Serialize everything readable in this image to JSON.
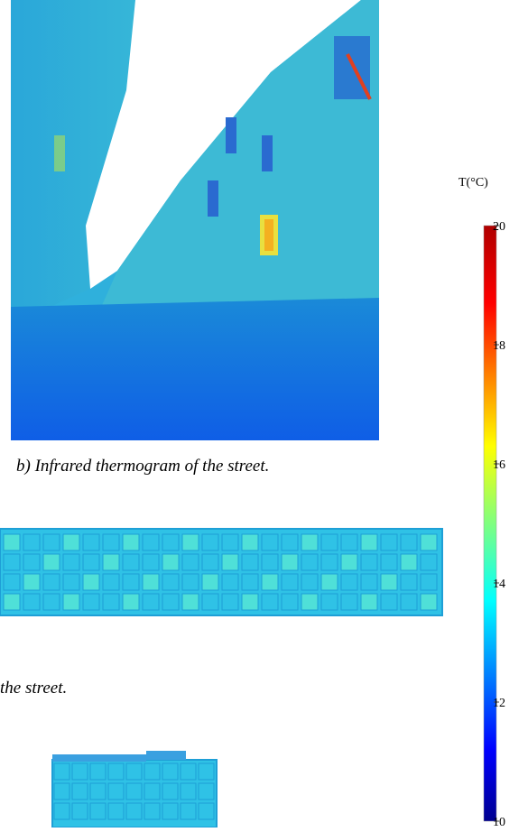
{
  "figure": {
    "caption_b": "b) Infrared thermogram of the street.",
    "caption_partial": "the street.",
    "colorbar": {
      "label": "T(°C)",
      "lim": [
        10,
        20
      ],
      "ticks": [
        20,
        18,
        16,
        14,
        12,
        10
      ]
    }
  }
}
